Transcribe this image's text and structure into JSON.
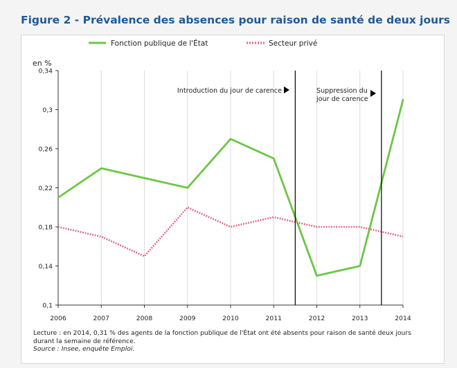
{
  "figure_title": "Figure 2 - Prévalence des absences pour raison de santé de deux jours",
  "legend": {
    "series1": "Fonction publique de l'État",
    "series2": "Secteur privé"
  },
  "notes": {
    "reading": "Lecture : en 2014, 0,31 % des agents de la fonction publique de l'État ont été absents pour raison de santé deux jours durant la semaine de référence.",
    "source": "Source : Insee, enquête Emploi."
  },
  "chart_data": {
    "type": "line",
    "title": "",
    "xlabel": "",
    "ylabel": "en %",
    "x": [
      "2006",
      "2007",
      "2008",
      "2009",
      "2010",
      "2011",
      "2012",
      "2013",
      "2014"
    ],
    "ylim": [
      0.1,
      0.34
    ],
    "yticks": [
      0.1,
      0.14,
      0.18,
      0.22,
      0.26,
      0.3,
      0.34
    ],
    "ytick_labels": [
      "0,1",
      "0,14",
      "0,18",
      "0,22",
      "0,26",
      "0,3",
      "0,34"
    ],
    "grid": "vertical",
    "legend_position": "top",
    "series": [
      {
        "name": "Fonction publique de l'État",
        "style": "solid",
        "color": "#6cc644",
        "values": [
          0.21,
          0.24,
          0.23,
          0.22,
          0.27,
          0.25,
          0.13,
          0.14,
          0.31
        ]
      },
      {
        "name": "Secteur privé",
        "style": "dotted",
        "color": "#e2637f",
        "values": [
          0.18,
          0.17,
          0.15,
          0.2,
          0.18,
          0.19,
          0.18,
          0.18,
          0.17
        ]
      }
    ],
    "annotations": [
      {
        "label": "Introduction du jour de carence",
        "x": 2011.5
      },
      {
        "label": "Suppression du jour de carence",
        "x": 2013.5
      }
    ]
  }
}
